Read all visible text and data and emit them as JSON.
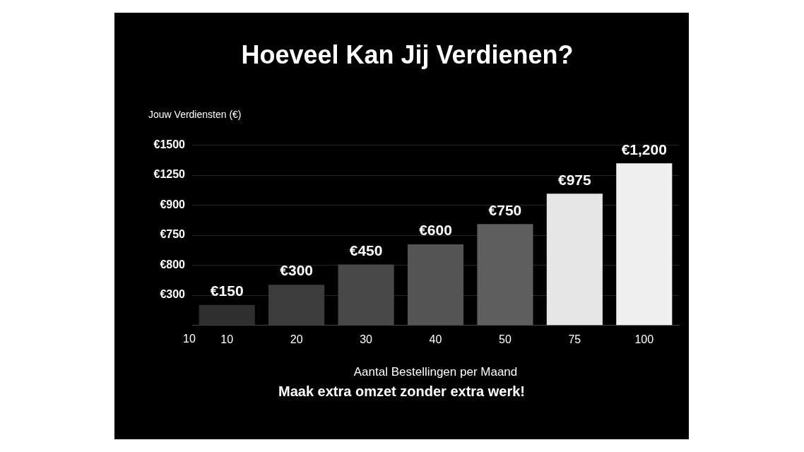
{
  "chart_data": {
    "type": "bar",
    "title": "Hoeveel Kan Jij Verdienen?",
    "ylabel": "Jouw Verdiensten (€)",
    "xlabel": "Aantal Bestellingen per Maand",
    "categories": [
      "10",
      "20",
      "30",
      "40",
      "50",
      "75",
      "100"
    ],
    "values": [
      150,
      300,
      450,
      600,
      750,
      975,
      1200
    ],
    "value_labels": [
      "€150",
      "€300",
      "€450",
      "€600",
      "€750",
      "€975",
      "€1,200"
    ],
    "colors": [
      "#2f2f2f",
      "#3c3c3c",
      "#484848",
      "#545454",
      "#5e5e5e",
      "#e6e6e6",
      "#f0f0f0"
    ],
    "grid": "y",
    "annotations": [
      "Maak extra omzet zonder extra werk!",
      "10",
      "€300",
      "€800",
      "€750",
      "€900",
      "€1250",
      "€1500"
    ]
  }
}
